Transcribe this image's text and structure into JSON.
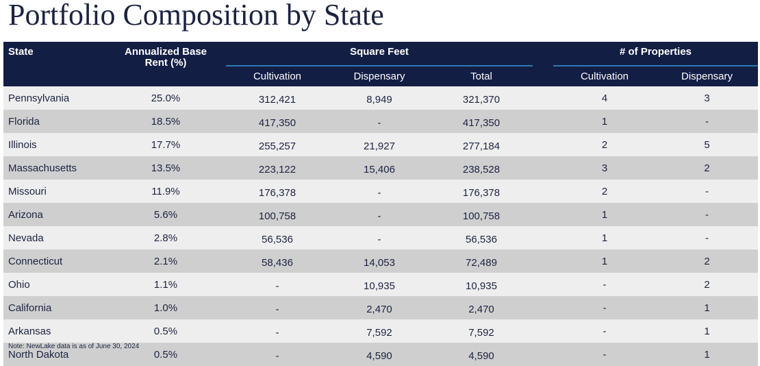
{
  "title": "Portfolio Composition by State",
  "headers": {
    "state": "State",
    "rent_line1": "Annualized Base",
    "rent_line2": "Rent (%)",
    "square_feet": "Square Feet",
    "num_properties": "# of Properties",
    "cultivation": "Cultivation",
    "dispensary": "Dispensary",
    "total": "Total"
  },
  "rows": [
    {
      "state": "Pennsylvania",
      "rent": "25.0%",
      "sf_cult": "312,421",
      "sf_disp": "8,949",
      "sf_total": "321,370",
      "p_cult": "4",
      "p_disp": "3"
    },
    {
      "state": "Florida",
      "rent": "18.5%",
      "sf_cult": "417,350",
      "sf_disp": "-",
      "sf_total": "417,350",
      "p_cult": "1",
      "p_disp": "-"
    },
    {
      "state": "Illinois",
      "rent": "17.7%",
      "sf_cult": "255,257",
      "sf_disp": "21,927",
      "sf_total": "277,184",
      "p_cult": "2",
      "p_disp": "5"
    },
    {
      "state": "Massachusetts",
      "rent": "13.5%",
      "sf_cult": "223,122",
      "sf_disp": "15,406",
      "sf_total": "238,528",
      "p_cult": "3",
      "p_disp": "2"
    },
    {
      "state": "Missouri",
      "rent": "11.9%",
      "sf_cult": "176,378",
      "sf_disp": "-",
      "sf_total": "176,378",
      "p_cult": "2",
      "p_disp": "-"
    },
    {
      "state": "Arizona",
      "rent": "5.6%",
      "sf_cult": "100,758",
      "sf_disp": "-",
      "sf_total": "100,758",
      "p_cult": "1",
      "p_disp": "-"
    },
    {
      "state": "Nevada",
      "rent": "2.8%",
      "sf_cult": "56,536",
      "sf_disp": "-",
      "sf_total": "56,536",
      "p_cult": "1",
      "p_disp": "-"
    },
    {
      "state": "Connecticut",
      "rent": "2.1%",
      "sf_cult": "58,436",
      "sf_disp": "14,053",
      "sf_total": "72,489",
      "p_cult": "1",
      "p_disp": "2"
    },
    {
      "state": "Ohio",
      "rent": "1.1%",
      "sf_cult": "-",
      "sf_disp": "10,935",
      "sf_total": "10,935",
      "p_cult": "-",
      "p_disp": "2"
    },
    {
      "state": "California",
      "rent": "1.0%",
      "sf_cult": "-",
      "sf_disp": "2,470",
      "sf_total": "2,470",
      "p_cult": "-",
      "p_disp": "1"
    },
    {
      "state": "Arkansas",
      "rent": "0.5%",
      "sf_cult": "-",
      "sf_disp": "7,592",
      "sf_total": "7,592",
      "p_cult": "-",
      "p_disp": "1"
    },
    {
      "state": "North Dakota",
      "rent": "0.5%",
      "sf_cult": "-",
      "sf_disp": "4,590",
      "sf_total": "4,590",
      "p_cult": "-",
      "p_disp": "1"
    }
  ],
  "note": "Note: NewLake data is as of June 30, 2024",
  "colors": {
    "header_bg": "#131e45",
    "accent_rule": "#2b7bb5",
    "row_light": "#eeeeee",
    "row_dark": "#cfcfcf",
    "text": "#1c2340"
  }
}
